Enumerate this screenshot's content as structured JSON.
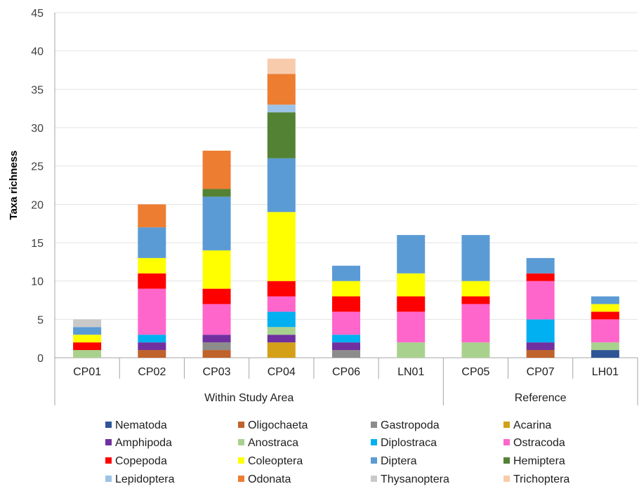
{
  "chart_data": {
    "type": "bar",
    "stacked": true,
    "ylabel": "Taxa richness",
    "ylim": [
      0,
      45
    ],
    "yticks": [
      0,
      5,
      10,
      15,
      20,
      25,
      30,
      35,
      40,
      45
    ],
    "categories": [
      "CP01",
      "CP02",
      "CP03",
      "CP04",
      "CP06",
      "LN01",
      "CP05",
      "CP07",
      "LH01"
    ],
    "groups": [
      {
        "label": "Within Study Area",
        "categories": [
          "CP01",
          "CP02",
          "CP03",
          "CP04",
          "CP06",
          "LN01"
        ]
      },
      {
        "label": "Reference",
        "categories": [
          "CP05",
          "CP07",
          "LH01"
        ]
      }
    ],
    "legend_position": "bottom",
    "series": [
      {
        "name": "Nematoda",
        "color": "#2f5597",
        "values": [
          0,
          0,
          0,
          0,
          0,
          0,
          0,
          0,
          1
        ]
      },
      {
        "name": "Oligochaeta",
        "color": "#c0622b",
        "values": [
          0,
          1,
          1,
          0,
          0,
          0,
          0,
          1,
          0
        ]
      },
      {
        "name": "Gastropoda",
        "color": "#8c8c8c",
        "values": [
          0,
          0,
          1,
          0,
          1,
          0,
          0,
          0,
          0
        ]
      },
      {
        "name": "Acarina",
        "color": "#d4a017",
        "values": [
          0,
          0,
          0,
          2,
          0,
          0,
          0,
          0,
          0
        ]
      },
      {
        "name": "Amphipoda",
        "color": "#7030a0",
        "values": [
          0,
          1,
          1,
          1,
          1,
          0,
          0,
          1,
          0
        ]
      },
      {
        "name": "Anostraca",
        "color": "#a9d18e",
        "values": [
          1,
          0,
          0,
          1,
          0,
          2,
          2,
          0,
          1
        ]
      },
      {
        "name": "Diplostraca",
        "color": "#00b0f0",
        "values": [
          0,
          1,
          0,
          2,
          1,
          0,
          0,
          3,
          0
        ]
      },
      {
        "name": "Ostracoda",
        "color": "#ff66cc",
        "values": [
          0,
          6,
          4,
          2,
          3,
          4,
          5,
          5,
          3
        ]
      },
      {
        "name": "Copepoda",
        "color": "#ff0000",
        "values": [
          1,
          2,
          2,
          2,
          2,
          2,
          1,
          1,
          1
        ]
      },
      {
        "name": "Coleoptera",
        "color": "#ffff00",
        "values": [
          1,
          2,
          5,
          9,
          2,
          3,
          2,
          0,
          1
        ]
      },
      {
        "name": "Diptera",
        "color": "#5b9bd5",
        "values": [
          1,
          4,
          7,
          7,
          2,
          5,
          6,
          2,
          1
        ]
      },
      {
        "name": "Hemiptera",
        "color": "#548235",
        "values": [
          0,
          0,
          1,
          6,
          0,
          0,
          0,
          0,
          0
        ]
      },
      {
        "name": "Lepidoptera",
        "color": "#9dc3e6",
        "values": [
          0,
          0,
          0,
          1,
          0,
          0,
          0,
          0,
          0
        ]
      },
      {
        "name": "Odonata",
        "color": "#ed7d31",
        "values": [
          0,
          3,
          5,
          4,
          0,
          0,
          0,
          0,
          0
        ]
      },
      {
        "name": "Thysanoptera",
        "color": "#c9c9c9",
        "values": [
          1,
          0,
          0,
          0,
          0,
          0,
          0,
          0,
          0
        ]
      },
      {
        "name": "Trichoptera",
        "color": "#f8cbad",
        "values": [
          0,
          0,
          0,
          2,
          0,
          0,
          0,
          0,
          0
        ]
      }
    ]
  }
}
